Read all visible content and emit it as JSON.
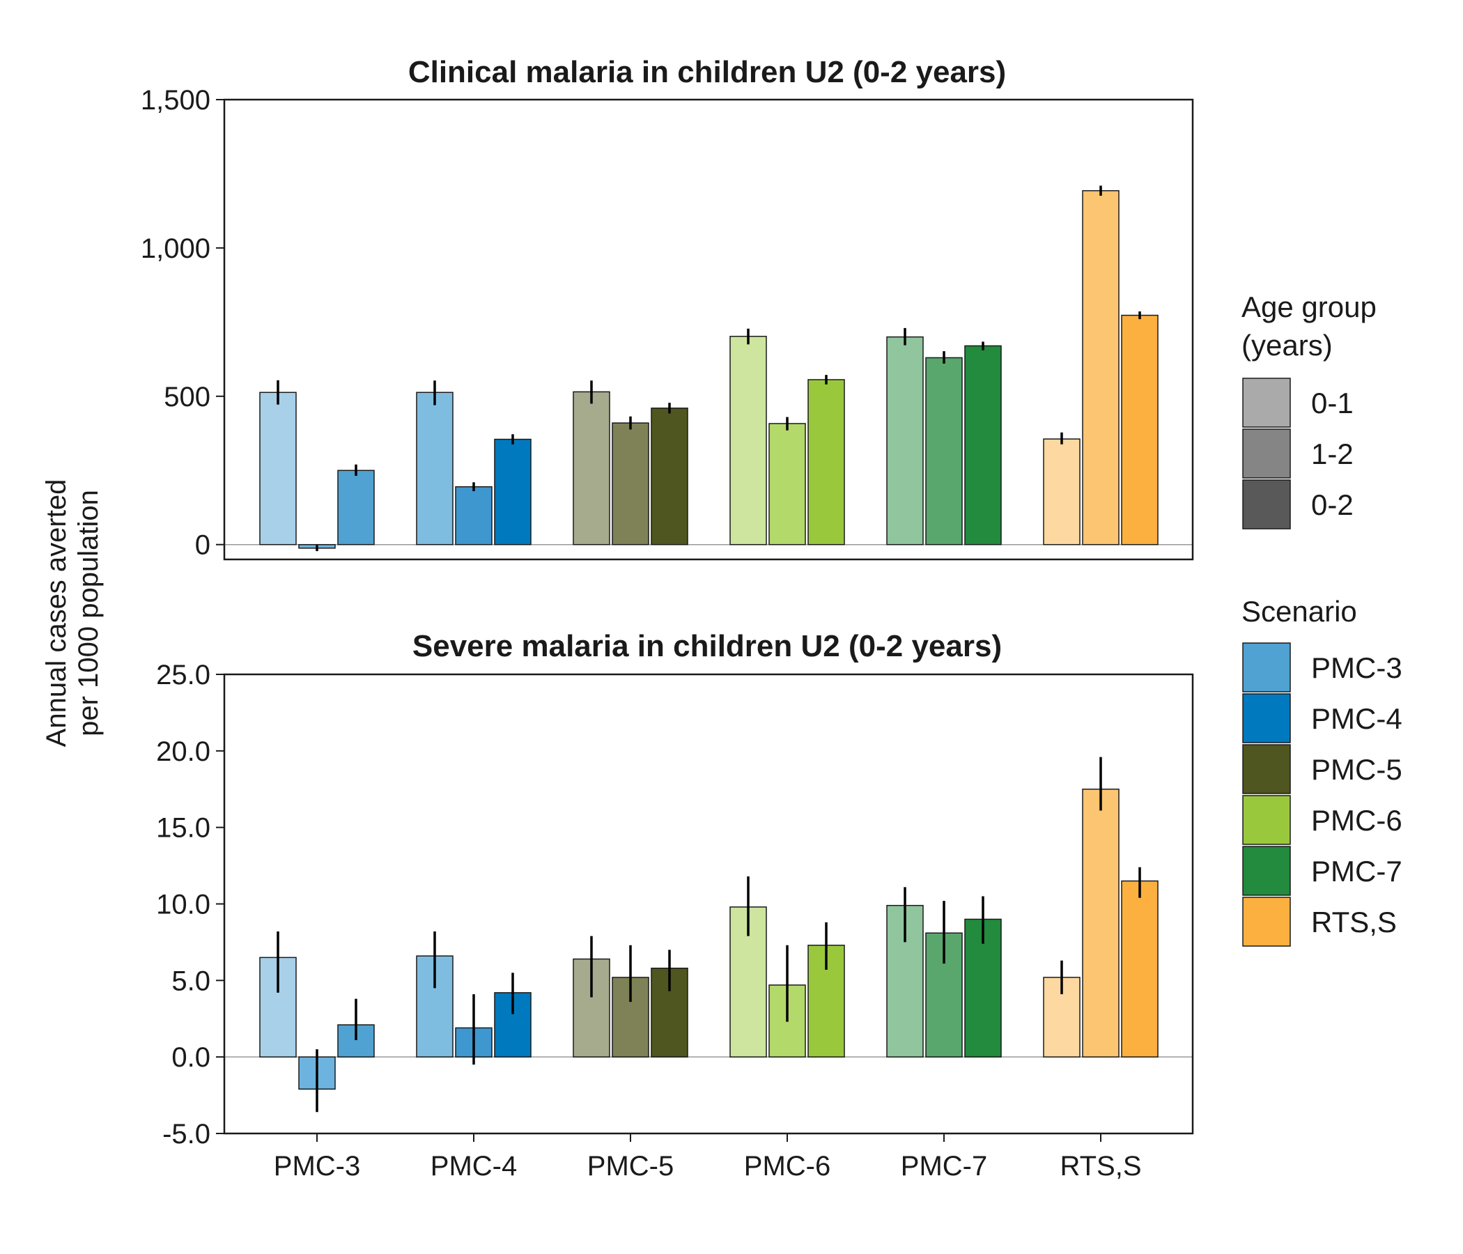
{
  "y_axis_title": [
    "Annual cases averted",
    "per 1000 population"
  ],
  "chart_data": [
    {
      "type": "bar",
      "title": "Clinical malaria in children U2 (0-2 years)",
      "ylabel": "Annual cases averted per 1000 population",
      "xlabel": "",
      "ylim": [
        -50,
        1500
      ],
      "yticks": [
        0,
        500,
        1000,
        1500
      ],
      "ytick_labels": [
        "0",
        "500",
        "1,000",
        "1,500"
      ],
      "show_xticklabels": false,
      "categories": [
        "PMC-3",
        "PMC-4",
        "PMC-5",
        "PMC-6",
        "PMC-7",
        "RTS,S"
      ],
      "series": [
        {
          "name": "0-1",
          "values": [
            513,
            513,
            515,
            702,
            700,
            356
          ],
          "lower": [
            472,
            470,
            475,
            675,
            672,
            338
          ],
          "upper": [
            554,
            553,
            553,
            728,
            730,
            378
          ]
        },
        {
          "name": "1-2",
          "values": [
            -12,
            195,
            410,
            408,
            630,
            1193
          ],
          "lower": [
            -22,
            180,
            388,
            385,
            610,
            1176
          ],
          "upper": [
            -2,
            210,
            432,
            430,
            652,
            1210
          ]
        },
        {
          "name": "0-2",
          "values": [
            250,
            355,
            460,
            556,
            670,
            773
          ],
          "lower": [
            232,
            338,
            442,
            540,
            655,
            760
          ],
          "upper": [
            270,
            372,
            478,
            572,
            684,
            786
          ]
        }
      ]
    },
    {
      "type": "bar",
      "title": "Severe malaria in children U2 (0-2 years)",
      "ylabel": "Annual cases averted per 1000 population",
      "xlabel": "",
      "ylim": [
        -5,
        25
      ],
      "yticks": [
        -5,
        0,
        5,
        10,
        15,
        20,
        25
      ],
      "ytick_labels": [
        "-5.0",
        "0.0",
        "5.0",
        "10.0",
        "15.0",
        "20.0",
        "25.0"
      ],
      "show_xticklabels": true,
      "categories": [
        "PMC-3",
        "PMC-4",
        "PMC-5",
        "PMC-6",
        "PMC-7",
        "RTS,S"
      ],
      "series": [
        {
          "name": "0-1",
          "values": [
            6.5,
            6.6,
            6.4,
            9.8,
            9.9,
            5.2
          ],
          "lower": [
            4.2,
            4.5,
            3.9,
            7.9,
            7.5,
            4.1
          ],
          "upper": [
            8.2,
            8.2,
            7.9,
            11.8,
            11.1,
            6.3
          ]
        },
        {
          "name": "1-2",
          "values": [
            -2.1,
            1.9,
            5.2,
            4.7,
            8.1,
            17.5
          ],
          "lower": [
            -3.6,
            -0.5,
            3.6,
            2.3,
            6.1,
            16.1
          ],
          "upper": [
            0.5,
            4.1,
            7.3,
            7.3,
            10.2,
            19.6
          ]
        },
        {
          "name": "0-2",
          "values": [
            2.1,
            4.2,
            5.8,
            7.3,
            9.0,
            11.5
          ],
          "lower": [
            1.1,
            2.8,
            4.3,
            5.7,
            7.4,
            10.4
          ],
          "upper": [
            3.8,
            5.5,
            7.0,
            8.8,
            10.5,
            12.4
          ]
        }
      ]
    }
  ],
  "legends": {
    "age_group": {
      "title": [
        "Age group",
        "(years)"
      ],
      "items": [
        {
          "label": "0-1",
          "color": "#aaaaaa"
        },
        {
          "label": "1-2",
          "color": "#858585"
        },
        {
          "label": "0-2",
          "color": "#595959"
        }
      ]
    },
    "scenario": {
      "title": "Scenario",
      "items": [
        {
          "label": "PMC-3",
          "color": "#4fa2d1"
        },
        {
          "label": "PMC-4",
          "color": "#0179be"
        },
        {
          "label": "PMC-5",
          "color": "#50561f"
        },
        {
          "label": "PMC-6",
          "color": "#9ac83d"
        },
        {
          "label": "PMC-7",
          "color": "#228b3d"
        },
        {
          "label": "RTS,S",
          "color": "#fbb040"
        }
      ]
    }
  },
  "bar_colors": {
    "PMC-3": [
      "#a8d0e9",
      "#6cb4df",
      "#4fa2d1"
    ],
    "PMC-4": [
      "#7fbde0",
      "#3f97cf",
      "#0179be"
    ],
    "PMC-5": [
      "#a7ab8e",
      "#7f8256",
      "#50561f"
    ],
    "PMC-6": [
      "#cde59f",
      "#b4d96b",
      "#9ac83d"
    ],
    "PMC-7": [
      "#90c59e",
      "#59a76d",
      "#228b3d"
    ],
    "RTS,S": [
      "#fdd8a0",
      "#fcc572",
      "#fbb040"
    ]
  }
}
